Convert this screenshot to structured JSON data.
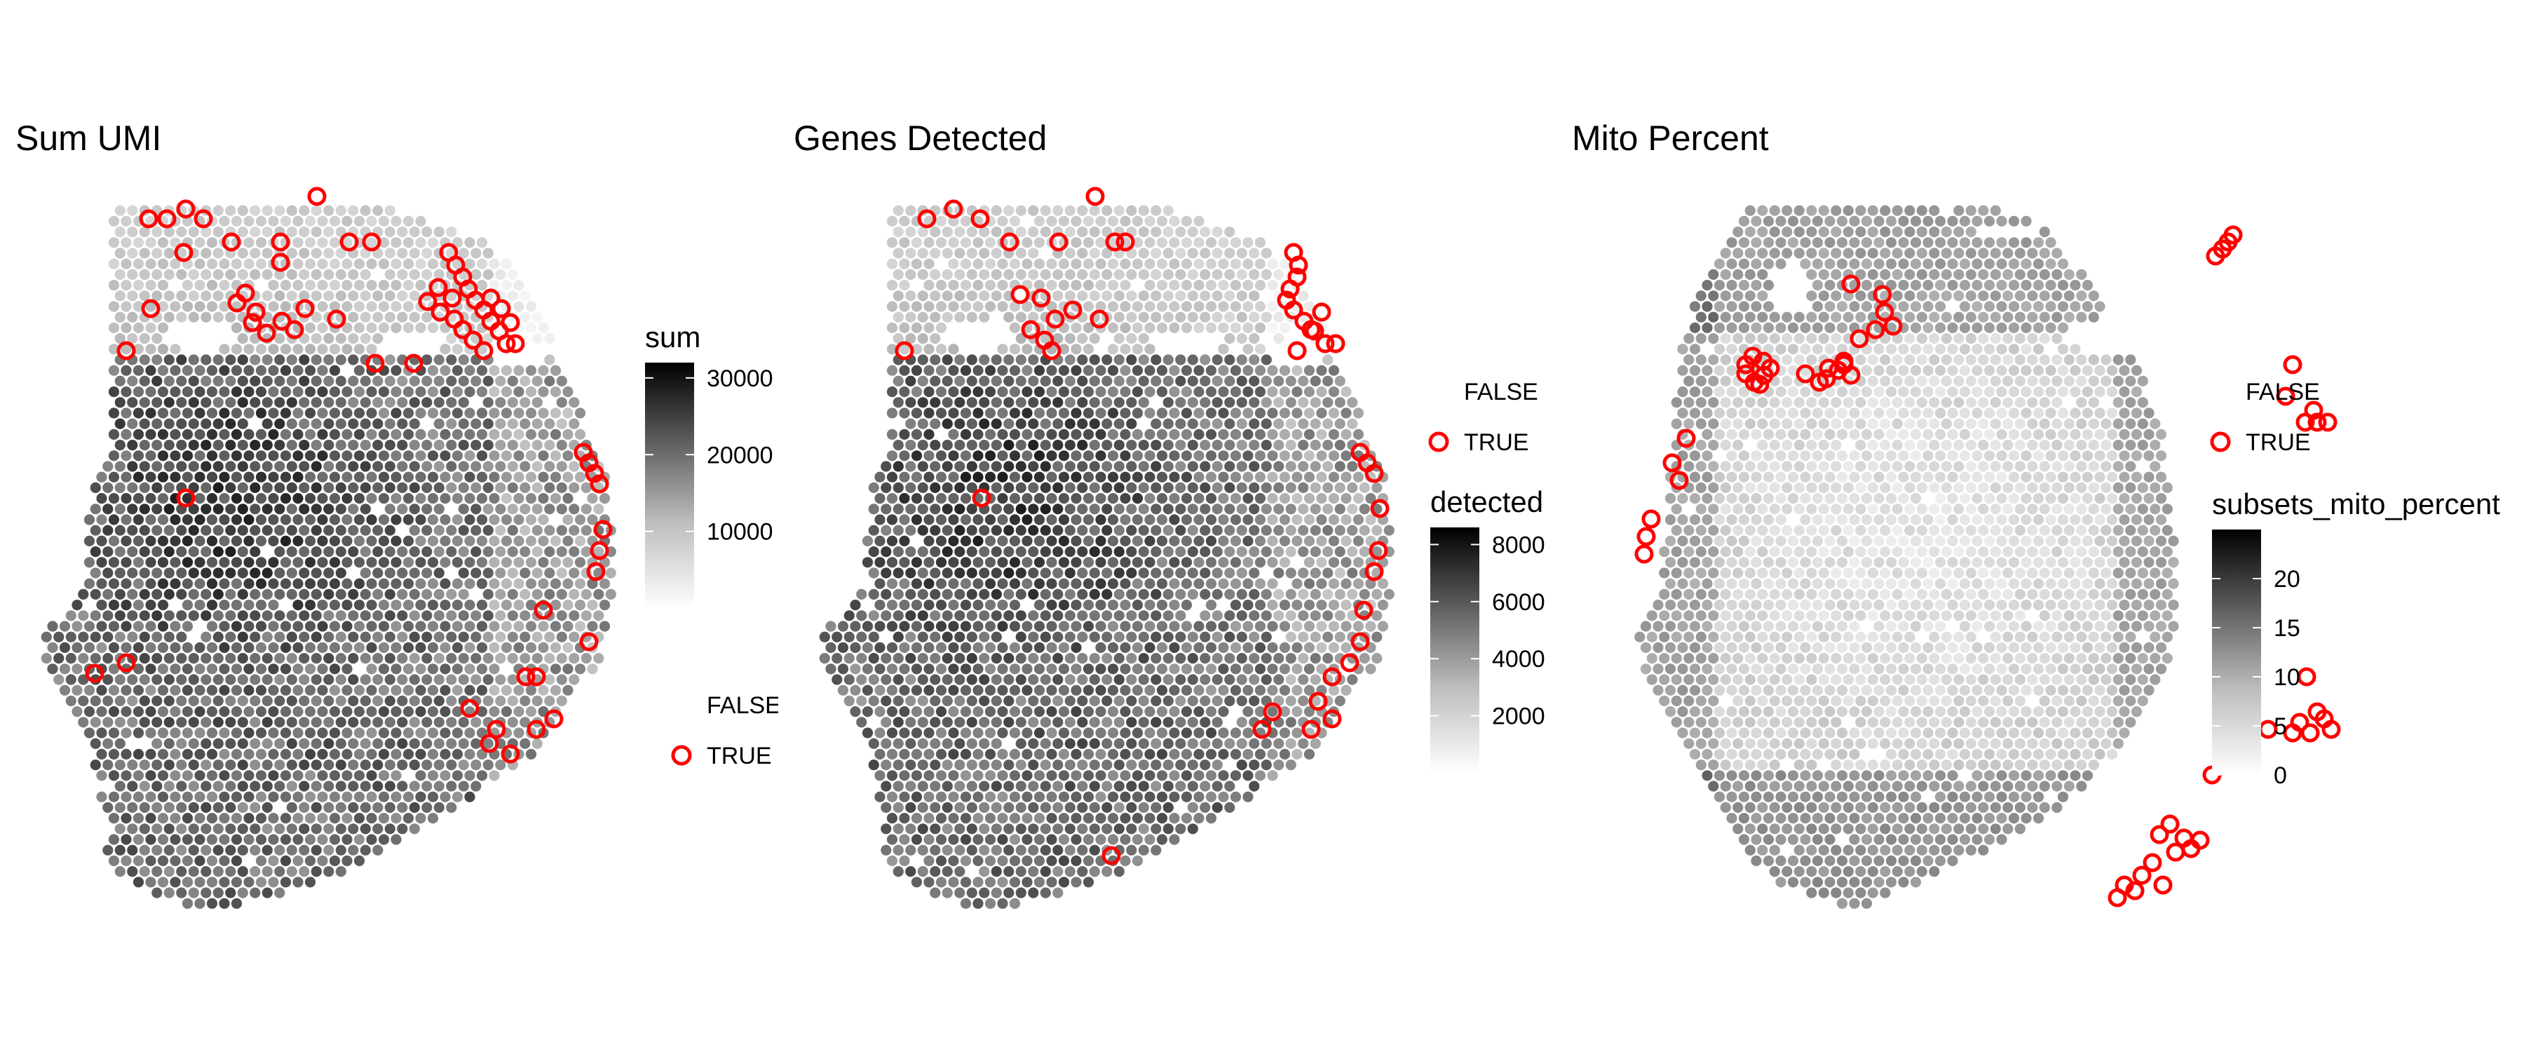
{
  "colors": {
    "spot_low": "#ffffff",
    "spot_high": "#000000",
    "outlier_ring": "#ff0000",
    "background": "#ffffff"
  },
  "chart_data": [
    {
      "type": "scatter",
      "title": "Sum UMI",
      "xlabel": "",
      "ylabel": "",
      "colorbar": {
        "title": "sum",
        "range": [
          0,
          32000
        ],
        "ticks": [
          10000,
          20000,
          30000
        ],
        "tick_labels": [
          "10000",
          "20000",
          "30000"
        ],
        "palette": "white-to-black"
      },
      "shape_legend": {
        "entries": [
          "FALSE",
          "TRUE"
        ]
      },
      "outlier_label": "TRUE",
      "outlier_count": 57
    },
    {
      "type": "scatter",
      "title": "Genes Detected",
      "xlabel": "",
      "ylabel": "",
      "colorbar": {
        "title": "detected",
        "range": [
          0,
          8600
        ],
        "ticks": [
          2000,
          4000,
          6000,
          8000
        ],
        "tick_labels": [
          "2000",
          "4000",
          "6000",
          "8000"
        ],
        "palette": "white-to-black"
      },
      "shape_legend": {
        "entries": [
          "FALSE",
          "TRUE"
        ]
      },
      "outlier_label": "TRUE",
      "outlier_count": 42
    },
    {
      "type": "scatter",
      "title": "Mito Percent",
      "xlabel": "",
      "ylabel": "",
      "colorbar": {
        "title": "subsets_mito_percent",
        "range": [
          0,
          25
        ],
        "ticks": [
          0,
          5,
          10,
          15,
          20
        ],
        "tick_labels": [
          "0",
          "5",
          "10",
          "15",
          "20"
        ],
        "palette": "white-to-black"
      },
      "shape_legend": {
        "entries": [
          "FALSE",
          "TRUE"
        ]
      },
      "outlier_label": "TRUE",
      "outlier_count": 50
    }
  ]
}
